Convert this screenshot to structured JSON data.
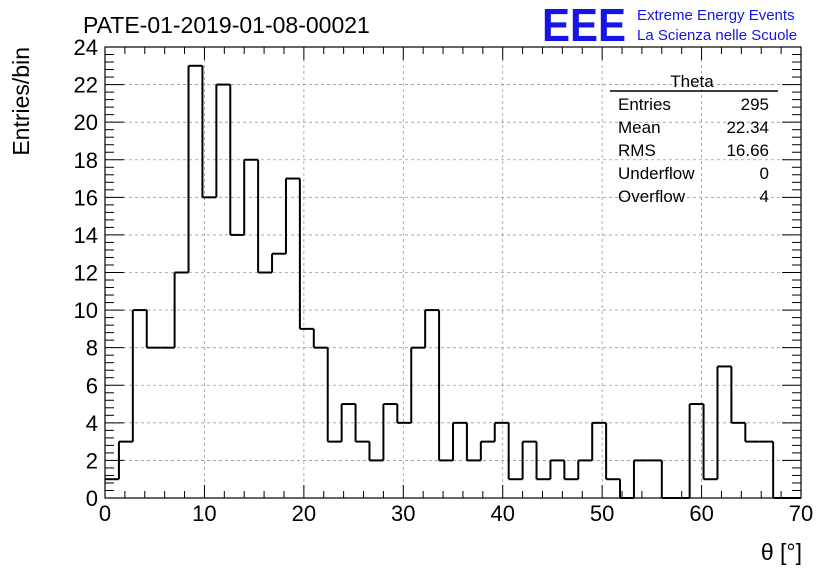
{
  "chart_data": {
    "type": "bar",
    "histogram": true,
    "title": "PATE-01-2019-01-08-00021",
    "xlabel": "θ [°]",
    "ylabel": "Entries/bin",
    "xlim": [
      0,
      70
    ],
    "ylim": [
      0,
      24
    ],
    "xticks": [
      0,
      10,
      20,
      30,
      40,
      50,
      60,
      70
    ],
    "yticks": [
      0,
      2,
      4,
      6,
      8,
      10,
      12,
      14,
      16,
      18,
      20,
      22,
      24
    ],
    "grid": true,
    "bin_width": 1.4,
    "values": [
      1,
      3,
      10,
      8,
      8,
      12,
      23,
      16,
      22,
      14,
      18,
      12,
      13,
      17,
      9,
      8,
      3,
      5,
      3,
      2,
      5,
      4,
      8,
      10,
      2,
      4,
      2,
      3,
      4,
      1,
      3,
      1,
      2,
      1,
      2,
      4,
      1,
      0,
      2,
      2,
      0,
      0,
      5,
      1,
      7,
      4,
      3,
      3,
      0,
      0
    ],
    "stats": {
      "name": "Theta",
      "rows": [
        {
          "label": "Entries",
          "value": "295"
        },
        {
          "label": "Mean",
          "value": "22.34"
        },
        {
          "label": "RMS",
          "value": "16.66"
        },
        {
          "label": "Underflow",
          "value": "0"
        },
        {
          "label": "Overflow",
          "value": "4"
        }
      ]
    }
  },
  "logo": {
    "text": "EEE",
    "line1": "Extreme Energy Events",
    "line2": "La Scienza nelle Scuole",
    "color": "#1515e6"
  },
  "colors": {
    "line": "#000000",
    "grid": "#9a9a9a"
  }
}
